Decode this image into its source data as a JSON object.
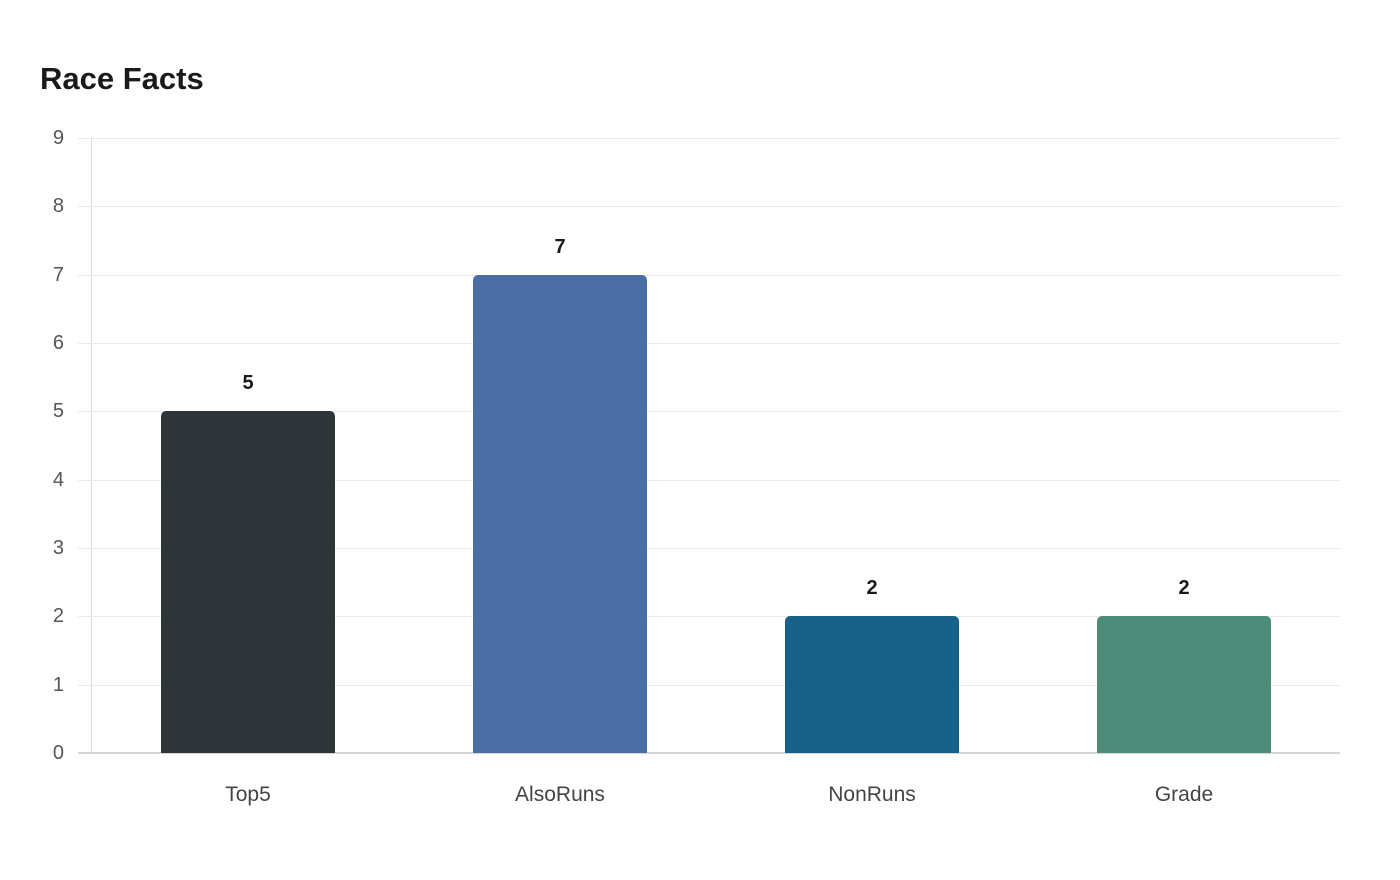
{
  "chart_data": {
    "type": "bar",
    "title": "Race Facts",
    "xlabel": "",
    "ylabel": "",
    "categories": [
      "Top5",
      "AlsoRuns",
      "NonRuns",
      "Grade"
    ],
    "values": [
      5,
      7,
      2,
      2
    ],
    "colors": [
      "#2e3538",
      "#4a6ea3",
      "#176087",
      "#4e8c7a"
    ],
    "ylim": [
      0,
      9
    ],
    "yticks": [
      0,
      1,
      2,
      3,
      4,
      5,
      6,
      7,
      8,
      9
    ],
    "grid": true,
    "legend": null,
    "data_labels": true
  }
}
